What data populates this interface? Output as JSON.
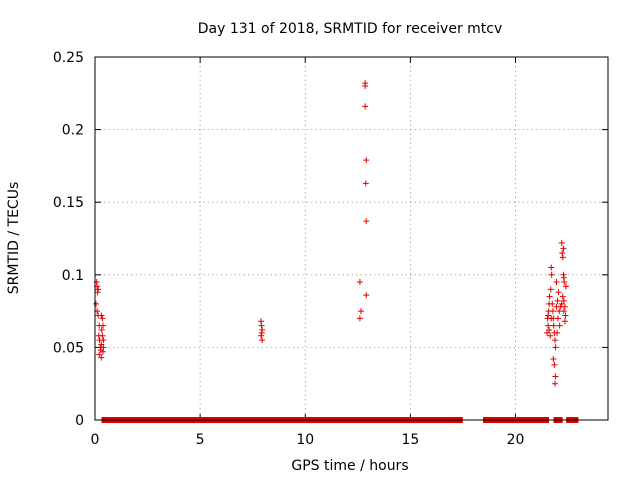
{
  "chart_data": {
    "type": "scatter",
    "title": "Day 131 of 2018, SRMTID for receiver mtcv",
    "xlabel": "GPS time / hours",
    "ylabel": "SRMTID / TECUs",
    "xlim": [
      0,
      24.4
    ],
    "ylim": [
      0,
      0.25
    ],
    "xticks": [
      0,
      5,
      10,
      15,
      20
    ],
    "xtick_labels": [
      "0",
      "5",
      "10",
      "15",
      "20"
    ],
    "yticks": [
      0,
      0.05,
      0.1,
      0.15,
      0.2,
      0.25
    ],
    "ytick_labels": [
      "0",
      "0.05",
      "0.1",
      "0.15",
      "0.2",
      "0.25"
    ],
    "grid": true,
    "marker": "plus",
    "marker_color": "#e00000",
    "zero_baseline_ranges": [
      [
        0.45,
        16.4
      ],
      [
        16.6,
        17.35
      ],
      [
        18.6,
        21.45
      ],
      [
        21.95,
        22.1
      ],
      [
        22.55,
        22.85
      ]
    ],
    "series": [
      {
        "name": "",
        "points": [
          [
            0.05,
            0.08
          ],
          [
            0.08,
            0.095
          ],
          [
            0.1,
            0.092
          ],
          [
            0.12,
            0.088
          ],
          [
            0.1,
            0.075
          ],
          [
            0.15,
            0.072
          ],
          [
            0.2,
            0.065
          ],
          [
            0.18,
            0.058
          ],
          [
            0.22,
            0.055
          ],
          [
            0.25,
            0.05
          ],
          [
            0.2,
            0.045
          ],
          [
            0.28,
            0.048
          ],
          [
            0.3,
            0.052
          ],
          [
            0.32,
            0.062
          ],
          [
            0.35,
            0.07
          ],
          [
            0.3,
            0.072
          ],
          [
            0.38,
            0.065
          ],
          [
            0.35,
            0.058
          ],
          [
            0.4,
            0.055
          ],
          [
            0.4,
            0.05
          ],
          [
            0.3,
            0.043
          ],
          [
            0.38,
            0.047
          ],
          [
            0.15,
            0.09
          ],
          [
            7.9,
            0.068
          ],
          [
            7.92,
            0.065
          ],
          [
            7.95,
            0.062
          ],
          [
            7.93,
            0.06
          ],
          [
            7.9,
            0.058
          ],
          [
            7.95,
            0.055
          ],
          [
            12.6,
            0.095
          ],
          [
            12.65,
            0.075
          ],
          [
            12.6,
            0.07
          ],
          [
            12.85,
            0.232
          ],
          [
            12.85,
            0.23
          ],
          [
            12.85,
            0.216
          ],
          [
            12.9,
            0.179
          ],
          [
            12.88,
            0.163
          ],
          [
            12.9,
            0.137
          ],
          [
            12.9,
            0.086
          ],
          [
            21.5,
            0.06
          ],
          [
            21.55,
            0.065
          ],
          [
            21.52,
            0.07
          ],
          [
            21.58,
            0.075
          ],
          [
            21.6,
            0.08
          ],
          [
            21.62,
            0.085
          ],
          [
            21.55,
            0.072
          ],
          [
            21.65,
            0.058
          ],
          [
            21.68,
            0.09
          ],
          [
            21.7,
            0.105
          ],
          [
            21.72,
            0.1
          ],
          [
            21.75,
            0.08
          ],
          [
            21.78,
            0.075
          ],
          [
            21.8,
            0.07
          ],
          [
            21.82,
            0.065
          ],
          [
            21.85,
            0.06
          ],
          [
            21.88,
            0.055
          ],
          [
            21.9,
            0.05
          ],
          [
            21.8,
            0.042
          ],
          [
            21.85,
            0.038
          ],
          [
            21.9,
            0.03
          ],
          [
            21.88,
            0.025
          ],
          [
            21.95,
            0.078
          ],
          [
            22.0,
            0.082
          ],
          [
            22.05,
            0.088
          ],
          [
            21.95,
            0.095
          ],
          [
            22.02,
            0.07
          ],
          [
            22.08,
            0.075
          ],
          [
            22.1,
            0.065
          ],
          [
            21.98,
            0.06
          ],
          [
            22.2,
            0.122
          ],
          [
            22.22,
            0.115
          ],
          [
            22.25,
            0.112
          ],
          [
            22.28,
            0.118
          ],
          [
            22.3,
            0.098
          ],
          [
            22.32,
            0.095
          ],
          [
            22.25,
            0.085
          ],
          [
            22.3,
            0.082
          ],
          [
            22.35,
            0.078
          ],
          [
            22.3,
            0.075
          ],
          [
            22.38,
            0.072
          ],
          [
            22.35,
            0.068
          ],
          [
            22.2,
            0.08
          ],
          [
            22.15,
            0.078
          ],
          [
            21.7,
            0.07
          ],
          [
            21.6,
            0.062
          ],
          [
            22.4,
            0.092
          ],
          [
            22.28,
            0.1
          ]
        ]
      }
    ]
  }
}
